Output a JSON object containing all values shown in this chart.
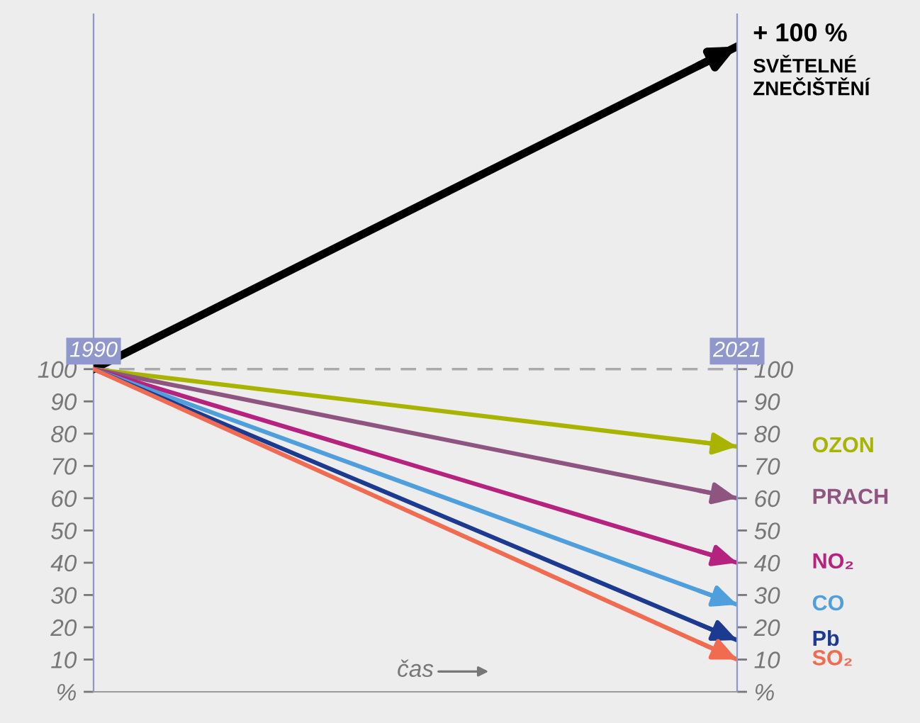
{
  "chart_data": {
    "type": "line",
    "xlabel": "čas",
    "x": [
      1990,
      2021
    ],
    "xlim": [
      1990,
      2021
    ],
    "xticks": [
      1990,
      2021
    ],
    "ylim": [
      0,
      210
    ],
    "yticks": [
      {
        "value": 0,
        "label": "%"
      },
      10,
      20,
      30,
      40,
      50,
      60,
      70,
      80,
      90,
      100
    ],
    "y2lim": [
      0,
      210
    ],
    "y2ticks": [
      {
        "value": 0,
        "label": "%"
      },
      10,
      20,
      30,
      40,
      50,
      60,
      70,
      80,
      90,
      100
    ],
    "series": [
      {
        "name": "SVĚTELNÉ\nZNEČIŠTĚNÍ",
        "color": "#000000",
        "values": [
          100,
          200
        ]
      },
      {
        "name": "OZON",
        "color": "#a8b400",
        "values": [
          100,
          76
        ]
      },
      {
        "name": "PRACH",
        "color": "#8e5580",
        "values": [
          100,
          60
        ]
      },
      {
        "name": "NO₂",
        "color": "#b5237f",
        "values": [
          100,
          40
        ]
      },
      {
        "name": "CO",
        "color": "#4f9fdc",
        "values": [
          100,
          27
        ]
      },
      {
        "name": "Pb",
        "color": "#1c3a8f",
        "values": [
          100,
          16
        ]
      },
      {
        "name": "SO₂",
        "color": "#f06b50",
        "values": [
          100,
          10
        ]
      }
    ],
    "annotations": [
      {
        "text": "+ 100 %",
        "x": 2021,
        "y": 200
      }
    ],
    "ref_lines": [
      {
        "axis": "y",
        "value": 100,
        "color": "#aaaaaa",
        "line_style": "dashed"
      }
    ],
    "marker": "none",
    "grid": false
  }
}
